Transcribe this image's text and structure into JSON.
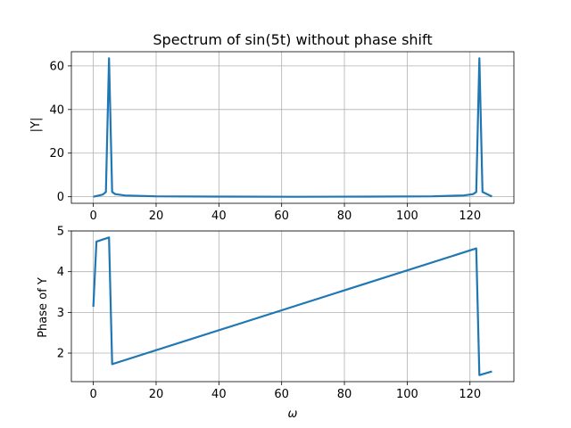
{
  "chart_data": [
    {
      "type": "line",
      "title": "Spectrum of sin(5t) without phase shift",
      "xlabel": "",
      "ylabel": "|Y|",
      "xlim": [
        -7,
        134
      ],
      "ylim": [
        -3,
        66.5
      ],
      "xticks": [
        0,
        20,
        40,
        60,
        80,
        100,
        120
      ],
      "yticks": [
        0,
        20,
        40,
        60
      ],
      "grid": true,
      "color": "#1f77b4",
      "series": [
        {
          "x": [
            0,
            3,
            4,
            5,
            6,
            7,
            10,
            20,
            40,
            64,
            88,
            108,
            118,
            121,
            122,
            123,
            124,
            127
          ],
          "y": [
            0,
            1.0,
            2.2,
            63.5,
            2.2,
            1.2,
            0.6,
            0.2,
            0.05,
            0.0,
            0.05,
            0.2,
            0.6,
            1.2,
            2.2,
            63.5,
            2.2,
            0.1
          ]
        }
      ]
    },
    {
      "type": "line",
      "title": "",
      "xlabel": "ω",
      "ylabel": "Phase of Y",
      "xlim": [
        -7,
        134
      ],
      "ylim": [
        1.3,
        5.0
      ],
      "xticks": [
        0,
        20,
        40,
        60,
        80,
        100,
        120
      ],
      "yticks": [
        2,
        3,
        4,
        5
      ],
      "grid": true,
      "color": "#1f77b4",
      "series": [
        {
          "x": [
            0,
            1,
            5,
            6,
            122,
            123,
            127
          ],
          "y": [
            3.14,
            4.74,
            4.84,
            1.73,
            4.57,
            1.46,
            1.55
          ]
        }
      ]
    }
  ]
}
